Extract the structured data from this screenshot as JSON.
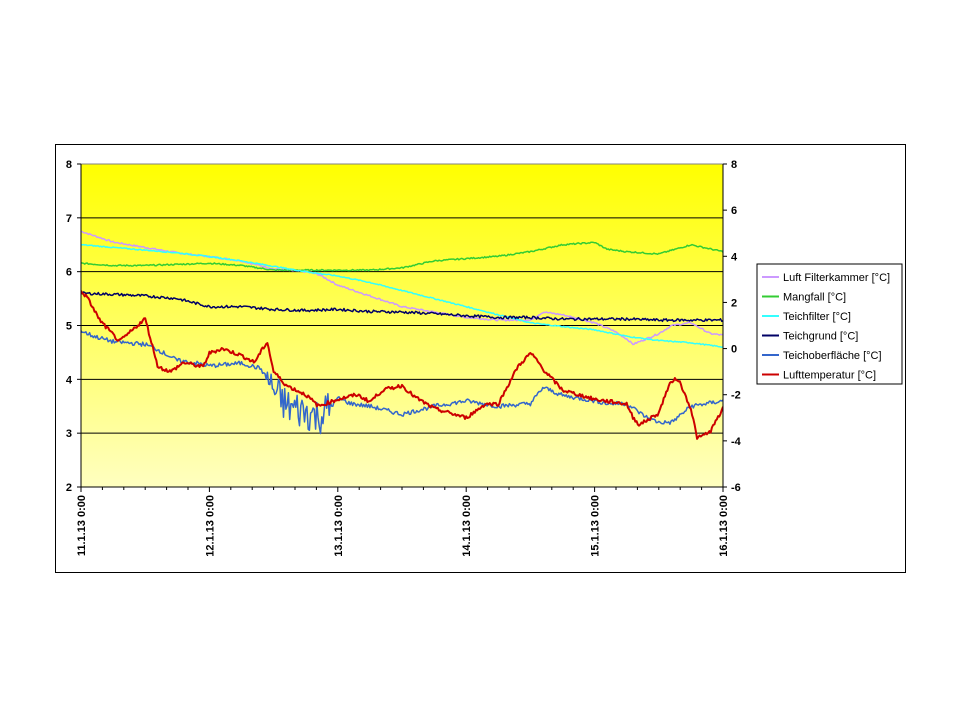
{
  "chart_data": {
    "type": "line",
    "title": "",
    "xlabel": "",
    "ylabel_left": "",
    "ylabel_right": "",
    "x_labels": [
      "11.1.13 0:00",
      "12.1.13 0:00",
      "13.1.13 0:00",
      "14.1.13 0:00",
      "15.1.13 0:00",
      "16.1.13 0:00"
    ],
    "x_range_days": [
      0,
      5
    ],
    "y_left_range": [
      2,
      8
    ],
    "y_left_ticks": [
      2,
      3,
      4,
      5,
      6,
      7,
      8
    ],
    "y_right_range": [
      -6,
      8
    ],
    "y_right_ticks": [
      -6,
      -4,
      -2,
      0,
      2,
      4,
      6,
      8
    ],
    "grid": "horizontal",
    "legend_position": "right",
    "plot_background": "yellow gradient (#ffff00 top to #ffffc0 bottom)",
    "series": [
      {
        "name": "Luft Filterkammer [°C]",
        "axis": "left",
        "color": "#cc99ff",
        "x": [
          0,
          0.25,
          0.5,
          0.75,
          1,
          1.25,
          1.5,
          1.75,
          1.85,
          2,
          2.25,
          2.5,
          2.75,
          3,
          3.25,
          3.5,
          3.6,
          3.75,
          4,
          4.15,
          4.25,
          4.3,
          4.5,
          4.6,
          4.75,
          4.9,
          5
        ],
        "values": [
          6.75,
          6.55,
          6.45,
          6.35,
          6.28,
          6.2,
          6.05,
          6.0,
          5.95,
          5.75,
          5.55,
          5.35,
          5.25,
          5.15,
          5.1,
          5.1,
          5.25,
          5.2,
          5.05,
          4.9,
          4.75,
          4.65,
          4.85,
          5.0,
          5.05,
          4.85,
          4.82
        ]
      },
      {
        "name": "Mangfall [°C]",
        "axis": "right",
        "color": "#33cc33",
        "x": [
          0,
          0.25,
          0.5,
          1,
          1.25,
          1.5,
          1.75,
          2,
          2.25,
          2.5,
          2.75,
          3,
          3.25,
          3.5,
          3.75,
          4,
          4.1,
          4.25,
          4.5,
          4.75,
          5
        ],
        "values": [
          3.7,
          3.6,
          3.6,
          3.7,
          3.6,
          3.4,
          3.4,
          3.4,
          3.4,
          3.5,
          3.8,
          3.9,
          4.0,
          4.2,
          4.5,
          4.6,
          4.3,
          4.2,
          4.1,
          4.5,
          4.2
        ]
      },
      {
        "name": "Teichfilter [°C]",
        "axis": "left",
        "color": "#33ffff",
        "x": [
          0,
          0.25,
          0.5,
          0.75,
          1,
          1.25,
          1.5,
          1.75,
          2,
          2.25,
          2.5,
          2.75,
          3,
          3.25,
          3.5,
          3.75,
          4,
          4.25,
          4.5,
          4.75,
          5
        ],
        "values": [
          6.5,
          6.45,
          6.4,
          6.35,
          6.28,
          6.2,
          6.1,
          6.0,
          5.92,
          5.8,
          5.65,
          5.5,
          5.35,
          5.2,
          5.05,
          4.98,
          4.92,
          4.8,
          4.72,
          4.68,
          4.6
        ]
      },
      {
        "name": "Teichgrund [°C]",
        "axis": "left",
        "color": "#000066",
        "x": [
          0,
          0.25,
          0.5,
          0.75,
          1,
          1.25,
          1.5,
          1.75,
          2,
          2.25,
          2.5,
          2.75,
          3,
          3.25,
          3.5,
          3.75,
          4,
          4.25,
          4.5,
          4.75,
          5
        ],
        "values": [
          5.6,
          5.58,
          5.55,
          5.5,
          5.35,
          5.35,
          5.3,
          5.28,
          5.3,
          5.26,
          5.25,
          5.22,
          5.18,
          5.15,
          5.15,
          5.12,
          5.12,
          5.12,
          5.1,
          5.1,
          5.1
        ]
      },
      {
        "name": "Teichoberfläche [°C]",
        "axis": "left",
        "color": "#3366cc",
        "x": [
          0,
          0.1,
          0.25,
          0.5,
          0.6,
          0.75,
          0.9,
          1,
          1.25,
          1.4,
          1.5,
          1.6,
          1.75,
          1.85,
          1.95,
          2,
          2.1,
          2.25,
          2.5,
          2.75,
          3,
          3.25,
          3.5,
          3.6,
          3.75,
          4,
          4.1,
          4.25,
          4.4,
          4.5,
          4.6,
          4.75,
          5
        ],
        "values": [
          4.9,
          4.8,
          4.7,
          4.65,
          4.55,
          4.35,
          4.3,
          4.25,
          4.3,
          4.2,
          3.8,
          3.5,
          3.4,
          3.3,
          3.5,
          3.65,
          3.55,
          3.5,
          3.35,
          3.5,
          3.6,
          3.5,
          3.55,
          3.85,
          3.7,
          3.6,
          3.55,
          3.55,
          3.3,
          3.2,
          3.2,
          3.5,
          3.6
        ]
      },
      {
        "name": "Lufttemperatur [°C]",
        "axis": "right",
        "color": "#cc0000",
        "x": [
          0,
          0.05,
          0.15,
          0.3,
          0.4,
          0.5,
          0.6,
          0.7,
          0.8,
          0.95,
          1,
          1.1,
          1.25,
          1.35,
          1.45,
          1.5,
          1.6,
          1.75,
          1.85,
          2,
          2.15,
          2.25,
          2.35,
          2.5,
          2.6,
          2.75,
          3,
          3.15,
          3.25,
          3.4,
          3.5,
          3.55,
          3.6,
          3.75,
          4,
          4.25,
          4.3,
          4.35,
          4.5,
          4.55,
          4.6,
          4.65,
          4.75,
          4.8,
          4.9,
          5
        ],
        "values": [
          2.5,
          2.2,
          1.2,
          0.3,
          0.8,
          1.3,
          -0.8,
          -1.0,
          -0.6,
          -0.8,
          -0.2,
          0.0,
          -0.3,
          -0.6,
          0.3,
          -1.0,
          -1.6,
          -2.0,
          -2.5,
          -2.2,
          -2.0,
          -2.3,
          -1.8,
          -1.6,
          -2.1,
          -2.6,
          -3.0,
          -2.4,
          -2.4,
          -0.8,
          -0.2,
          -0.5,
          -0.9,
          -1.8,
          -2.2,
          -2.4,
          -3.0,
          -3.3,
          -2.8,
          -2.0,
          -1.4,
          -1.3,
          -2.6,
          -3.9,
          -3.6,
          -2.6
        ]
      }
    ]
  }
}
